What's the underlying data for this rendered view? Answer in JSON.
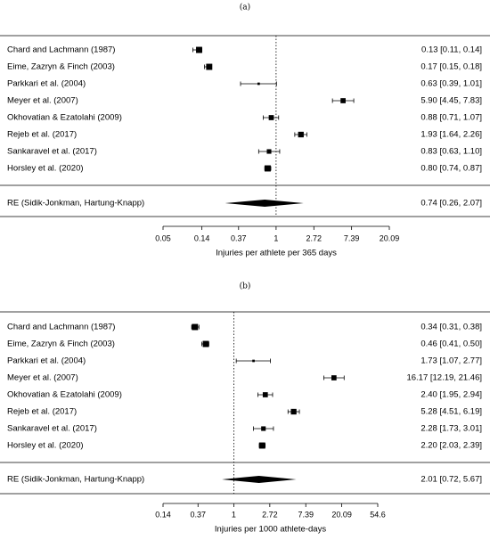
{
  "chart_data": [
    {
      "type": "forest",
      "panel_label": "(a)",
      "xlabel": "Injuries per athlete per 365 days",
      "x_scale": "log",
      "ticks": [
        "0.05",
        "0.14",
        "0.37",
        "1",
        "2.72",
        "7.39",
        "20.09"
      ],
      "tick_values": [
        0.05,
        0.14,
        0.37,
        1,
        2.72,
        7.39,
        20.09
      ],
      "xlim": [
        0.05,
        20.09
      ],
      "reference_line": 1,
      "studies": [
        {
          "label": "Chard and Lachmann (1987)",
          "est": 0.13,
          "lo": 0.11,
          "hi": 0.14,
          "weight": 0.9,
          "ci_text": "0.13 [0.11, 0.14]"
        },
        {
          "label": "Eime, Zazryn & Finch (2003)",
          "est": 0.17,
          "lo": 0.15,
          "hi": 0.18,
          "weight": 0.9,
          "ci_text": "0.17 [0.15, 0.18]"
        },
        {
          "label": "Parkkari et al. (2004)",
          "est": 0.63,
          "lo": 0.39,
          "hi": 1.01,
          "weight": 0.2,
          "ci_text": "0.63 [0.39, 1.01]"
        },
        {
          "label": "Meyer et al. (2007)",
          "est": 5.9,
          "lo": 4.45,
          "hi": 7.83,
          "weight": 0.7,
          "ci_text": "5.90 [4.45, 7.83]"
        },
        {
          "label": "Okhovatian & Ezatolahi (2009)",
          "est": 0.88,
          "lo": 0.71,
          "hi": 1.07,
          "weight": 0.7,
          "ci_text": "0.88 [0.71, 1.07]"
        },
        {
          "label": "Rejeb et al. (2017)",
          "est": 1.93,
          "lo": 1.64,
          "hi": 2.26,
          "weight": 0.8,
          "ci_text": "1.93 [1.64, 2.26]"
        },
        {
          "label": "Sankaravel et al. (2017)",
          "est": 0.83,
          "lo": 0.63,
          "hi": 1.1,
          "weight": 0.6,
          "ci_text": "0.83 [0.63, 1.10]"
        },
        {
          "label": "Horsley et al. (2020)",
          "est": 0.8,
          "lo": 0.74,
          "hi": 0.87,
          "weight": 0.9,
          "ci_text": "0.80 [0.74, 0.87]"
        }
      ],
      "summary": {
        "label": "RE (Sidik-Jonkman, Hartung-Knapp)",
        "est": 0.74,
        "lo": 0.26,
        "hi": 2.07,
        "ci_text": "0.74 [0.26, 2.07]"
      }
    },
    {
      "type": "forest",
      "panel_label": "(b)",
      "xlabel": "Injuries per  1000 athlete-days",
      "x_scale": "log",
      "ticks": [
        "0.14",
        "0.37",
        "1",
        "2.72",
        "7.39",
        "20.09",
        "54.6"
      ],
      "tick_values": [
        0.14,
        0.37,
        1,
        2.72,
        7.39,
        20.09,
        54.6
      ],
      "xlim": [
        0.14,
        54.6
      ],
      "reference_line": 1,
      "studies": [
        {
          "label": "Chard and Lachmann (1987)",
          "est": 0.34,
          "lo": 0.31,
          "hi": 0.38,
          "weight": 0.9,
          "ci_text": "0.34 [0.31,  0.38]"
        },
        {
          "label": "Eime, Zazryn & Finch (2003)",
          "est": 0.46,
          "lo": 0.41,
          "hi": 0.5,
          "weight": 0.9,
          "ci_text": "0.46 [0.41,  0.50]"
        },
        {
          "label": "Parkkari et al. (2004)",
          "est": 1.73,
          "lo": 1.07,
          "hi": 2.77,
          "weight": 0.2,
          "ci_text": "1.73 [1.07,  2.77]"
        },
        {
          "label": "Meyer et al. (2007)",
          "est": 16.17,
          "lo": 12.19,
          "hi": 21.46,
          "weight": 0.7,
          "ci_text": "16.17 [12.19, 21.46]"
        },
        {
          "label": "Okhovatian & Ezatolahi (2009)",
          "est": 2.4,
          "lo": 1.95,
          "hi": 2.94,
          "weight": 0.7,
          "ci_text": "2.40 [1.95,  2.94]"
        },
        {
          "label": "Rejeb et al. (2017)",
          "est": 5.28,
          "lo": 4.51,
          "hi": 6.19,
          "weight": 0.8,
          "ci_text": "5.28 [4.51,  6.19]"
        },
        {
          "label": "Sankaravel et al. (2017)",
          "est": 2.28,
          "lo": 1.73,
          "hi": 3.01,
          "weight": 0.6,
          "ci_text": "2.28 [1.73,  3.01]"
        },
        {
          "label": "Horsley et al. (2020)",
          "est": 2.2,
          "lo": 2.03,
          "hi": 2.39,
          "weight": 0.9,
          "ci_text": "2.20 [2.03,  2.39]"
        }
      ],
      "summary": {
        "label": "RE (Sidik-Jonkman, Hartung-Knapp)",
        "est": 2.01,
        "lo": 0.72,
        "hi": 5.67,
        "ci_text": "2.01 [0.72,  5.67]"
      }
    }
  ]
}
